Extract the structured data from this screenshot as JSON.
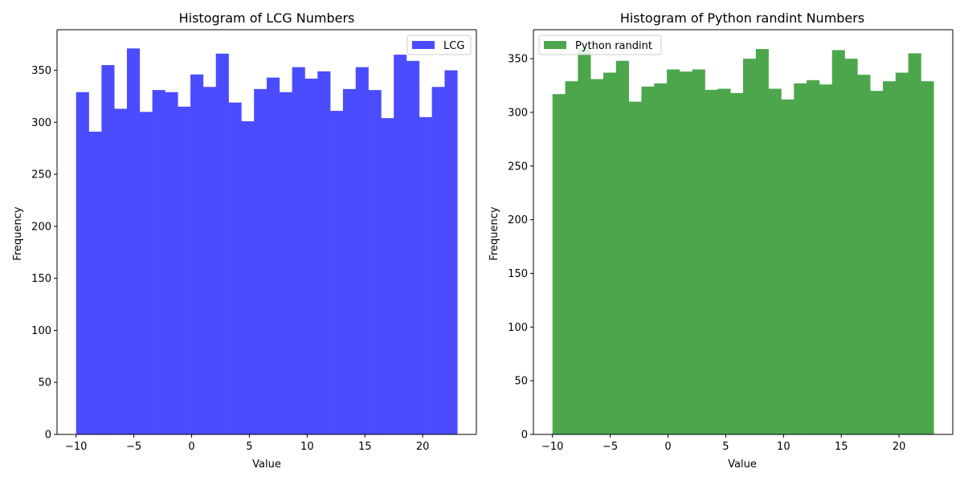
{
  "chart_data": [
    {
      "type": "bar",
      "title": "Histogram of LCG Numbers",
      "xlabel": "Value",
      "ylabel": "Frequency",
      "xlim": [
        -11.65,
        24.65
      ],
      "ylim": [
        0,
        389
      ],
      "xticks": [
        -10,
        -5,
        0,
        5,
        10,
        15,
        20
      ],
      "xtick_labels": [
        "−10",
        "−5",
        "0",
        "5",
        "10",
        "15",
        "20"
      ],
      "yticks": [
        0,
        50,
        100,
        150,
        200,
        250,
        300,
        350
      ],
      "bin_start": -10,
      "bin_width": 1.1,
      "color": "#4b4bff",
      "legend_position": "upper right",
      "grid": false,
      "series": [
        {
          "name": "LCG",
          "values": [
            329,
            291,
            355,
            313,
            371,
            310,
            331,
            329,
            315,
            346,
            334,
            366,
            319,
            301,
            332,
            343,
            329,
            353,
            342,
            349,
            311,
            332,
            353,
            331,
            304,
            365,
            359,
            305,
            334,
            350
          ]
        }
      ]
    },
    {
      "type": "bar",
      "title": "Histogram of Python randint Numbers",
      "xlabel": "Value",
      "ylabel": "Frequency",
      "xlim": [
        -11.65,
        24.65
      ],
      "ylim": [
        0,
        377
      ],
      "xticks": [
        -10,
        -5,
        0,
        5,
        10,
        15,
        20
      ],
      "xtick_labels": [
        "−10",
        "−5",
        "0",
        "5",
        "10",
        "15",
        "20"
      ],
      "yticks": [
        0,
        50,
        100,
        150,
        200,
        250,
        300,
        350
      ],
      "bin_start": -10,
      "bin_width": 1.1,
      "color": "#4ca64c",
      "legend_position": "upper left",
      "grid": false,
      "series": [
        {
          "name": "Python randint",
          "values": [
            317,
            329,
            360,
            331,
            337,
            348,
            310,
            324,
            327,
            340,
            338,
            340,
            321,
            322,
            318,
            350,
            359,
            322,
            312,
            327,
            330,
            326,
            358,
            350,
            335,
            320,
            329,
            337,
            355,
            329
          ]
        }
      ]
    }
  ]
}
